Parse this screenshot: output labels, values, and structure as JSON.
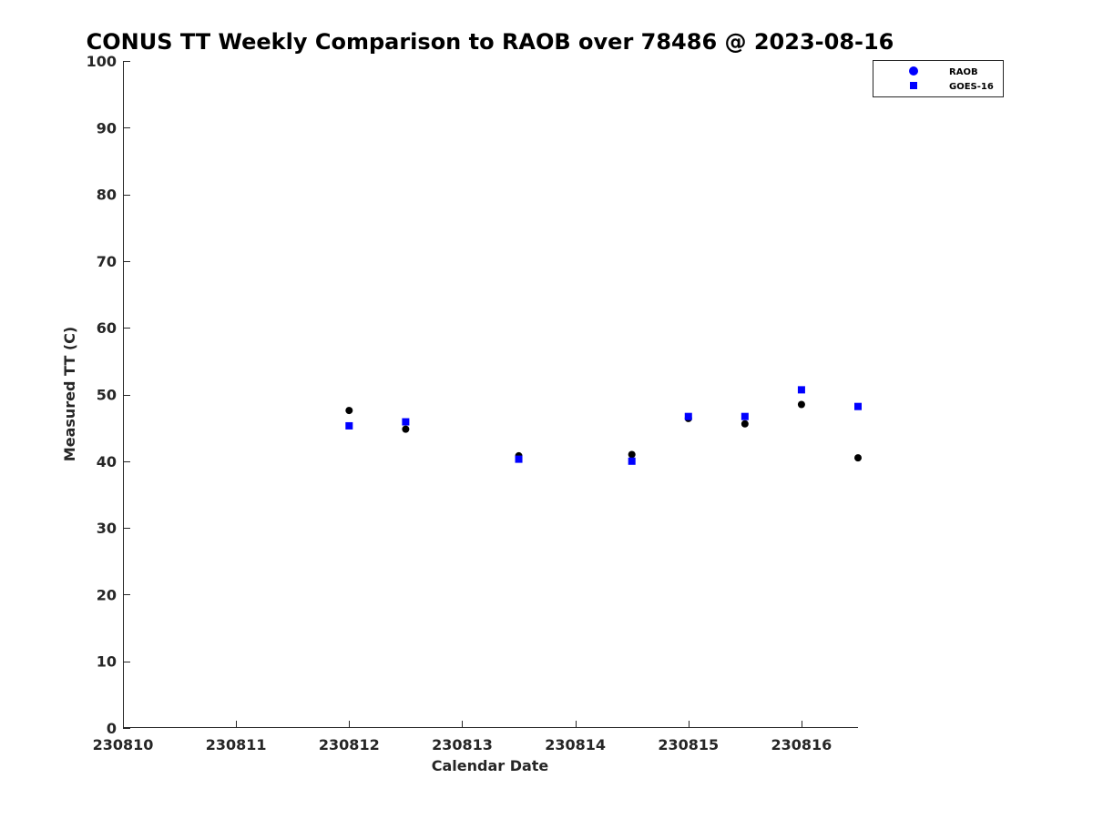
{
  "chart_data": {
    "type": "scatter",
    "title": "CONUS TT Weekly Comparison to RAOB over 78486 @ 2023-08-16",
    "xlabel": "Calendar Date",
    "ylabel": "Measured TT (C)",
    "xlim": [
      230810,
      230816.5
    ],
    "ylim": [
      0,
      100
    ],
    "x_ticks": [
      230810,
      230811,
      230812,
      230813,
      230814,
      230815,
      230816
    ],
    "x_tick_labels": [
      "230810",
      "230811",
      "230812",
      "230813",
      "230814",
      "230815",
      "230816"
    ],
    "y_ticks": [
      0,
      10,
      20,
      30,
      40,
      50,
      60,
      70,
      80,
      90,
      100
    ],
    "y_tick_labels": [
      "0",
      "10",
      "20",
      "30",
      "40",
      "50",
      "60",
      "70",
      "80",
      "90",
      "100"
    ],
    "grid": false,
    "legend_position": "top-right",
    "series": [
      {
        "name": "RAOB",
        "marker": "circle",
        "color": "#000000",
        "legend_color": "#0000ff",
        "x": [
          230812.0,
          230812.5,
          230813.5,
          230814.5,
          230815.0,
          230815.5,
          230816.0,
          230816.5
        ],
        "y": [
          47.6,
          44.8,
          40.8,
          41.0,
          46.4,
          45.6,
          48.5,
          40.5
        ]
      },
      {
        "name": "GOES-16",
        "marker": "square",
        "color": "#0000ff",
        "legend_color": "#0000ff",
        "x": [
          230812.0,
          230812.5,
          230813.5,
          230814.5,
          230815.0,
          230815.5,
          230816.0,
          230816.5
        ],
        "y": [
          45.3,
          45.9,
          40.3,
          40.0,
          46.7,
          46.7,
          50.7,
          48.2
        ]
      }
    ]
  }
}
